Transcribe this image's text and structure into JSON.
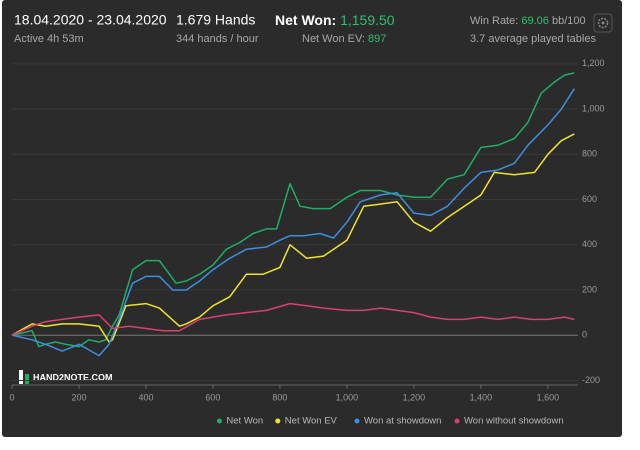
{
  "header": {
    "date_range": "18.04.2020 - 23.04.2020",
    "active": "Active 4h 53m",
    "hands": "1.679 Hands",
    "rate": "344 hands / hour",
    "net_won_label": "Net Won:",
    "net_won": "1,159.50",
    "net_won_ev_label": "Net Won  EV:",
    "net_won_ev": "897",
    "win_rate_label": "Win Rate:",
    "win_rate": "69.06",
    "win_rate_unit": "bb/100",
    "tables": "3.7 average played tables"
  },
  "chart_data": {
    "type": "line",
    "watermark": "HAND2NOTE.COM",
    "xlim": [
      0,
      1690
    ],
    "ylim": [
      -220,
      1270
    ],
    "xticks": [
      0,
      200,
      400,
      600,
      800,
      {
        "value": 1000,
        "label": "1,000"
      },
      {
        "value": 1200,
        "label": "1,200"
      },
      {
        "value": 1400,
        "label": "1,400"
      },
      {
        "value": 1600,
        "label": "1,600"
      }
    ],
    "yticks": [
      -200,
      0,
      200,
      400,
      600,
      800,
      {
        "value": 1000,
        "label": "1,000"
      },
      {
        "value": 1200,
        "label": "1,200"
      }
    ],
    "grid": true,
    "legend": "bottom-right",
    "series": [
      {
        "name": "Net Won",
        "color": "#1fae68",
        "x": [
          0,
          30,
          60,
          80,
          100,
          130,
          160,
          200,
          230,
          260,
          280,
          300,
          320,
          360,
          400,
          440,
          490,
          520,
          560,
          600,
          640,
          680,
          720,
          760,
          790,
          830,
          860,
          900,
          950,
          1000,
          1040,
          1100,
          1150,
          1200,
          1250,
          1300,
          1350,
          1400,
          1450,
          1500,
          1540,
          1580,
          1620,
          1650,
          1679
        ],
        "values": [
          0,
          10,
          20,
          -50,
          -40,
          -30,
          -40,
          -50,
          -20,
          -30,
          -20,
          40,
          90,
          290,
          330,
          330,
          230,
          240,
          270,
          310,
          380,
          410,
          450,
          470,
          470,
          670,
          570,
          560,
          560,
          610,
          640,
          640,
          620,
          610,
          610,
          690,
          710,
          830,
          840,
          870,
          940,
          1070,
          1120,
          1150,
          1160
        ]
      },
      {
        "name": "Net Won  EV",
        "color": "#eee52a",
        "x": [
          0,
          60,
          100,
          150,
          200,
          260,
          290,
          300,
          340,
          400,
          440,
          500,
          520,
          560,
          600,
          650,
          700,
          750,
          800,
          830,
          880,
          930,
          1000,
          1050,
          1100,
          1150,
          1200,
          1250,
          1300,
          1360,
          1400,
          1440,
          1500,
          1560,
          1600,
          1640,
          1679
        ],
        "values": [
          0,
          50,
          40,
          50,
          50,
          40,
          -30,
          -20,
          130,
          140,
          120,
          40,
          50,
          80,
          130,
          170,
          270,
          270,
          300,
          400,
          340,
          350,
          420,
          570,
          580,
          590,
          500,
          460,
          520,
          580,
          620,
          720,
          710,
          720,
          800,
          860,
          890
        ]
      },
      {
        "name": "Won at showdown",
        "color": "#3d8fe0",
        "x": [
          0,
          60,
          100,
          150,
          200,
          260,
          290,
          320,
          360,
          400,
          440,
          480,
          520,
          560,
          600,
          650,
          700,
          760,
          800,
          830,
          870,
          920,
          960,
          1000,
          1040,
          1100,
          1150,
          1200,
          1250,
          1300,
          1350,
          1400,
          1450,
          1500,
          1540,
          1600,
          1640,
          1679
        ],
        "values": [
          0,
          -20,
          -40,
          -70,
          -40,
          -90,
          -40,
          70,
          230,
          260,
          260,
          200,
          200,
          240,
          290,
          340,
          380,
          390,
          420,
          440,
          440,
          450,
          430,
          500,
          590,
          620,
          630,
          540,
          530,
          570,
          650,
          720,
          730,
          760,
          840,
          930,
          1000,
          1090
        ]
      },
      {
        "name": "Won without showdown",
        "color": "#d9406f",
        "x": [
          0,
          60,
          100,
          150,
          200,
          260,
          300,
          350,
          400,
          450,
          500,
          560,
          600,
          640,
          700,
          760,
          830,
          880,
          930,
          1000,
          1050,
          1100,
          1150,
          1200,
          1250,
          1300,
          1350,
          1400,
          1450,
          1500,
          1550,
          1600,
          1650,
          1679
        ],
        "values": [
          0,
          40,
          60,
          70,
          80,
          90,
          30,
          40,
          30,
          20,
          20,
          70,
          80,
          90,
          100,
          110,
          140,
          130,
          120,
          110,
          110,
          120,
          110,
          100,
          80,
          70,
          70,
          80,
          70,
          80,
          70,
          70,
          80,
          70
        ]
      }
    ]
  }
}
